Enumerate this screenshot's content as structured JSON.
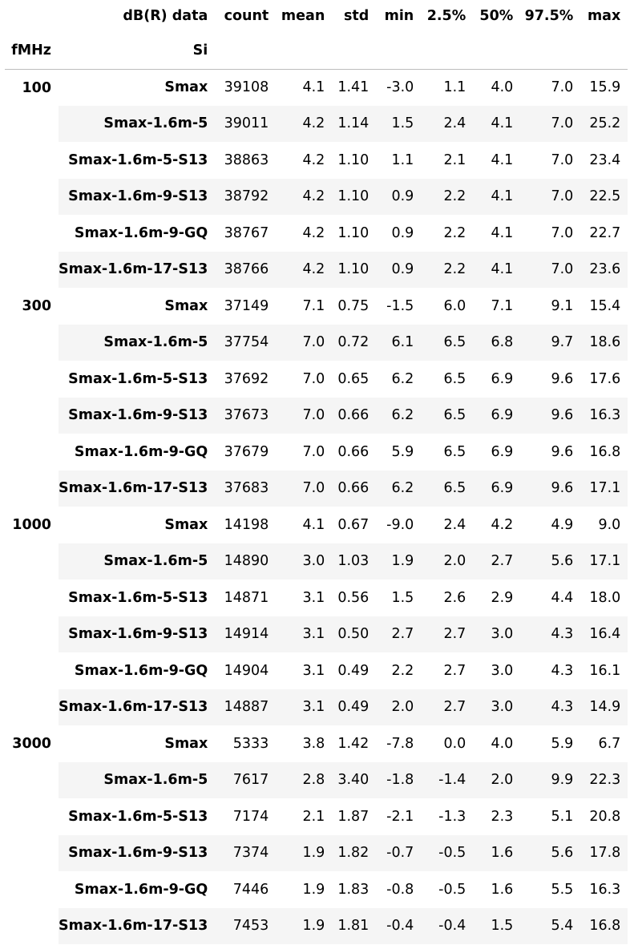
{
  "header": {
    "columns_label": "dB(R) data",
    "columns": [
      "count",
      "mean",
      "std",
      "min",
      "2.5%",
      "50%",
      "97.5%",
      "max"
    ],
    "index_names": [
      "fMHz",
      "Si"
    ]
  },
  "groups": [
    {
      "freq": "100",
      "rows": [
        {
          "si": "Smax",
          "values": [
            "39108",
            "4.1",
            "1.41",
            "-3.0",
            "1.1",
            "4.0",
            "7.0",
            "15.9"
          ]
        },
        {
          "si": "Smax-1.6m-5",
          "values": [
            "39011",
            "4.2",
            "1.14",
            "1.5",
            "2.4",
            "4.1",
            "7.0",
            "25.2"
          ]
        },
        {
          "si": "Smax-1.6m-5-S13",
          "values": [
            "38863",
            "4.2",
            "1.10",
            "1.1",
            "2.1",
            "4.1",
            "7.0",
            "23.4"
          ]
        },
        {
          "si": "Smax-1.6m-9-S13",
          "values": [
            "38792",
            "4.2",
            "1.10",
            "0.9",
            "2.2",
            "4.1",
            "7.0",
            "22.5"
          ]
        },
        {
          "si": "Smax-1.6m-9-GQ",
          "values": [
            "38767",
            "4.2",
            "1.10",
            "0.9",
            "2.2",
            "4.1",
            "7.0",
            "22.7"
          ]
        },
        {
          "si": "Smax-1.6m-17-S13",
          "values": [
            "38766",
            "4.2",
            "1.10",
            "0.9",
            "2.2",
            "4.1",
            "7.0",
            "23.6"
          ]
        }
      ]
    },
    {
      "freq": "300",
      "rows": [
        {
          "si": "Smax",
          "values": [
            "37149",
            "7.1",
            "0.75",
            "-1.5",
            "6.0",
            "7.1",
            "9.1",
            "15.4"
          ]
        },
        {
          "si": "Smax-1.6m-5",
          "values": [
            "37754",
            "7.0",
            "0.72",
            "6.1",
            "6.5",
            "6.8",
            "9.7",
            "18.6"
          ]
        },
        {
          "si": "Smax-1.6m-5-S13",
          "values": [
            "37692",
            "7.0",
            "0.65",
            "6.2",
            "6.5",
            "6.9",
            "9.6",
            "17.6"
          ]
        },
        {
          "si": "Smax-1.6m-9-S13",
          "values": [
            "37673",
            "7.0",
            "0.66",
            "6.2",
            "6.5",
            "6.9",
            "9.6",
            "16.3"
          ]
        },
        {
          "si": "Smax-1.6m-9-GQ",
          "values": [
            "37679",
            "7.0",
            "0.66",
            "5.9",
            "6.5",
            "6.9",
            "9.6",
            "16.8"
          ]
        },
        {
          "si": "Smax-1.6m-17-S13",
          "values": [
            "37683",
            "7.0",
            "0.66",
            "6.2",
            "6.5",
            "6.9",
            "9.6",
            "17.1"
          ]
        }
      ]
    },
    {
      "freq": "1000",
      "rows": [
        {
          "si": "Smax",
          "values": [
            "14198",
            "4.1",
            "0.67",
            "-9.0",
            "2.4",
            "4.2",
            "4.9",
            "9.0"
          ]
        },
        {
          "si": "Smax-1.6m-5",
          "values": [
            "14890",
            "3.0",
            "1.03",
            "1.9",
            "2.0",
            "2.7",
            "5.6",
            "17.1"
          ]
        },
        {
          "si": "Smax-1.6m-5-S13",
          "values": [
            "14871",
            "3.1",
            "0.56",
            "1.5",
            "2.6",
            "2.9",
            "4.4",
            "18.0"
          ]
        },
        {
          "si": "Smax-1.6m-9-S13",
          "values": [
            "14914",
            "3.1",
            "0.50",
            "2.7",
            "2.7",
            "3.0",
            "4.3",
            "16.4"
          ]
        },
        {
          "si": "Smax-1.6m-9-GQ",
          "values": [
            "14904",
            "3.1",
            "0.49",
            "2.2",
            "2.7",
            "3.0",
            "4.3",
            "16.1"
          ]
        },
        {
          "si": "Smax-1.6m-17-S13",
          "values": [
            "14887",
            "3.1",
            "0.49",
            "2.0",
            "2.7",
            "3.0",
            "4.3",
            "14.9"
          ]
        }
      ]
    },
    {
      "freq": "3000",
      "rows": [
        {
          "si": "Smax",
          "values": [
            "5333",
            "3.8",
            "1.42",
            "-7.8",
            "0.0",
            "4.0",
            "5.9",
            "6.7"
          ]
        },
        {
          "si": "Smax-1.6m-5",
          "values": [
            "7617",
            "2.8",
            "3.40",
            "-1.8",
            "-1.4",
            "2.0",
            "9.9",
            "22.3"
          ]
        },
        {
          "si": "Smax-1.6m-5-S13",
          "values": [
            "7174",
            "2.1",
            "1.87",
            "-2.1",
            "-1.3",
            "2.3",
            "5.1",
            "20.8"
          ]
        },
        {
          "si": "Smax-1.6m-9-S13",
          "values": [
            "7374",
            "1.9",
            "1.82",
            "-0.7",
            "-0.5",
            "1.6",
            "5.6",
            "17.8"
          ]
        },
        {
          "si": "Smax-1.6m-9-GQ",
          "values": [
            "7446",
            "1.9",
            "1.83",
            "-0.8",
            "-0.5",
            "1.6",
            "5.5",
            "16.3"
          ]
        },
        {
          "si": "Smax-1.6m-17-S13",
          "values": [
            "7453",
            "1.9",
            "1.81",
            "-0.4",
            "-0.4",
            "1.5",
            "5.4",
            "16.8"
          ]
        }
      ]
    }
  ],
  "colors": {
    "stripe": "#f5f5f5",
    "header_rule": "#bdbdbd",
    "text": "#000000"
  }
}
